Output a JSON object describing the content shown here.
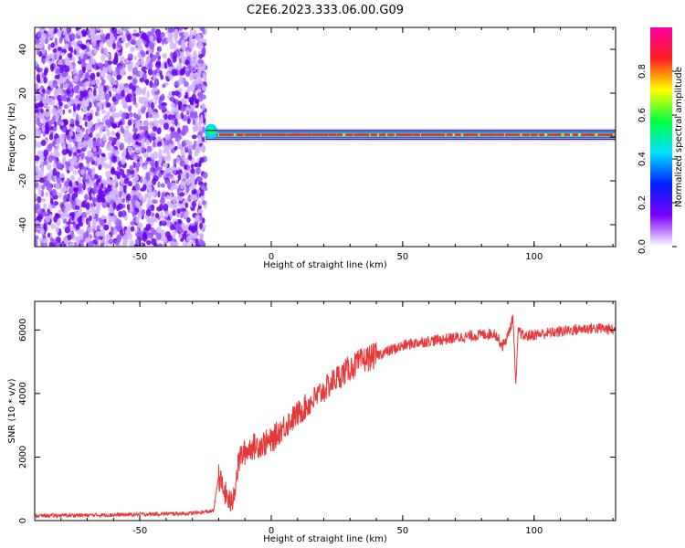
{
  "title": "C2E6.2023.333.06.00.G09",
  "chart_data": [
    {
      "type": "heatmap",
      "xlabel": "Height of straight line (km)",
      "ylabel": "Frequency (Hz)",
      "xlim": [
        -90,
        131
      ],
      "ylim": [
        -50,
        50
      ],
      "x_ticks": [
        -50,
        0,
        50,
        100
      ],
      "y_ticks": [
        -40,
        -20,
        0,
        20,
        40
      ],
      "noise_region": {
        "x_range": [
          -90,
          -25
        ],
        "description": "scattered low-amplitude purple speckle"
      },
      "signal_band": {
        "x_range": [
          -25,
          131
        ],
        "center_freq": 1.0,
        "half_width": 2.0
      },
      "colorbar": {
        "label": "Normalized spectral amplitude",
        "range": [
          0.0,
          1.0
        ],
        "ticks": [
          "0.0",
          "0.2",
          "0.4",
          "0.6",
          "0.8"
        ],
        "colormap": [
          "#ffffff",
          "#7a00ff",
          "#0020ff",
          "#00e0ff",
          "#00ff40",
          "#ffff00",
          "#ff2020",
          "#ff00a0"
        ]
      },
      "grid": false
    },
    {
      "type": "line",
      "xlabel": "Height of straight line (km)",
      "ylabel": "SNR (10 * v/v)",
      "xlim": [
        -90,
        131
      ],
      "ylim": [
        0,
        6900
      ],
      "x_ticks": [
        -50,
        0,
        50,
        100
      ],
      "y_ticks": [
        0,
        2000,
        4000,
        6000
      ],
      "series_color": "#e8383a",
      "x": [
        -90,
        -60,
        -30,
        -22,
        -20,
        -18,
        -15,
        -12,
        -8,
        -4,
        0,
        4,
        8,
        12,
        16,
        20,
        25,
        30,
        35,
        40,
        45,
        50,
        55,
        60,
        65,
        70,
        75,
        80,
        85,
        88,
        90,
        92,
        93,
        94,
        96,
        100,
        105,
        110,
        115,
        120,
        125,
        131
      ],
      "y": [
        150,
        180,
        230,
        300,
        1400,
        900,
        500,
        2000,
        2300,
        2400,
        2500,
        2900,
        3200,
        3500,
        3800,
        4100,
        4500,
        4800,
        5050,
        5200,
        5350,
        5500,
        5600,
        5650,
        5700,
        5750,
        5800,
        5850,
        5900,
        5500,
        5800,
        6400,
        4200,
        6000,
        5800,
        5850,
        5900,
        5950,
        6000,
        6050,
        6050,
        6000
      ]
    }
  ]
}
